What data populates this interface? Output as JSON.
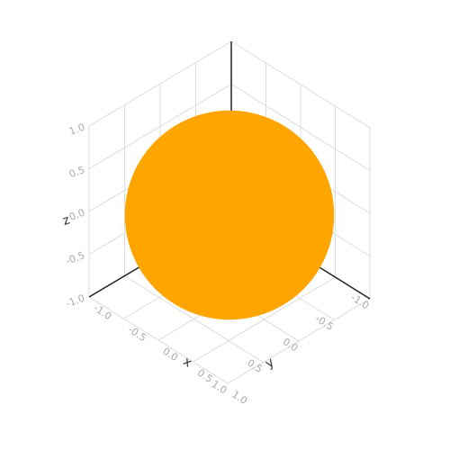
{
  "chart_data": {
    "type": "surface",
    "shape": "sphere",
    "center": [
      0,
      0,
      0
    ],
    "radius": 0.8,
    "color": "#ffa500",
    "grid": true,
    "axes": {
      "x": {
        "label": "x",
        "range": [
          -1,
          1
        ],
        "ticks": [
          "-1.0",
          "-0.5",
          "0.0",
          "0.5",
          "1.0"
        ]
      },
      "y": {
        "label": "y",
        "range": [
          -1,
          1
        ],
        "ticks": [
          "-1.0",
          "-0.5",
          "0.0",
          "0.5",
          "1.0"
        ]
      },
      "z": {
        "label": "z",
        "range": [
          -1,
          1
        ],
        "ticks": [
          "-1.0",
          "-0.5",
          "0.0",
          "0.5",
          "1.0"
        ]
      }
    }
  }
}
